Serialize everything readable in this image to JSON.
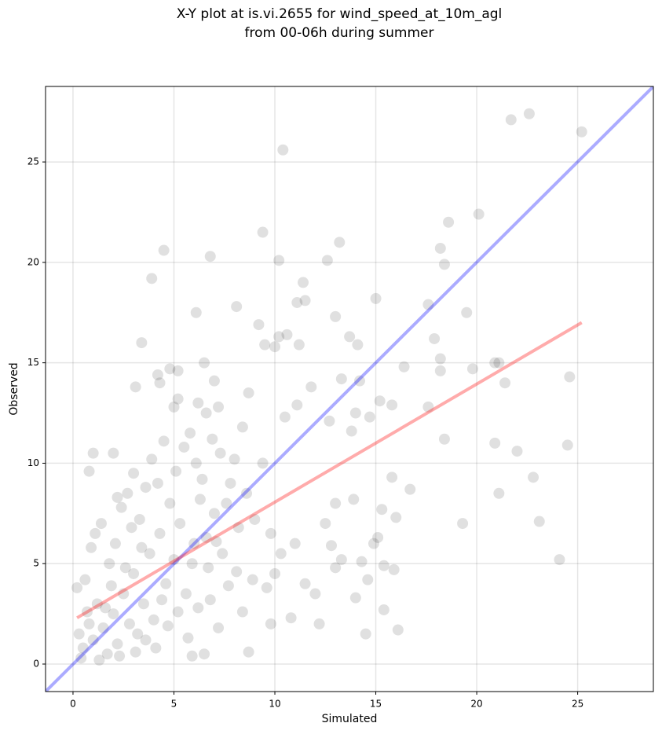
{
  "chart_data": {
    "type": "scatter",
    "title": [
      "X-Y plot at is.vi.2655 for wind_speed_at_10m_agl",
      "from 00-06h during summer"
    ],
    "x_label": "Simulated",
    "y_label": "Observed",
    "xlim": [
      -1.36,
      28.75
    ],
    "ylim": [
      -1.37,
      28.76
    ],
    "xticks": [
      0,
      5,
      10,
      15,
      20,
      25
    ],
    "yticks": [
      0,
      5,
      10,
      15,
      20,
      25
    ],
    "grid": true,
    "points": {
      "color": "#000000",
      "x": [
        10.4,
        21.7,
        22.6,
        25.2,
        9.4,
        13.2,
        18.6,
        20.1,
        4.5,
        6.8,
        10.2,
        12.6,
        18.2,
        18.4,
        3.9,
        11.4,
        11.1,
        11.5,
        8.1,
        15.0,
        17.6,
        19.5,
        6.1,
        13.0,
        9.2,
        10.2,
        10.6,
        13.7,
        17.9,
        3.4,
        9.5,
        10.0,
        11.2,
        14.1,
        20.9,
        21.1,
        19.8,
        21.4,
        24.6,
        18.2,
        18.2,
        16.4,
        14.2,
        13.3,
        7.0,
        4.8,
        5.2,
        3.1,
        4.2,
        4.3,
        5.0,
        5.2,
        6.5,
        6.2,
        6.6,
        7.2,
        8.7,
        10.5,
        11.8,
        11.1,
        15.2,
        15.8,
        17.6,
        14.0,
        14.7,
        12.7,
        13.8,
        18.4,
        22.0,
        24.5,
        20.9,
        21.1,
        22.8,
        16.7,
        15.8,
        19.3,
        23.1,
        24.1,
        15.3,
        16.0,
        15.1,
        14.9,
        15.4,
        15.9,
        14.6,
        15.4,
        16.1,
        14.5,
        12.2,
        10.8,
        9.8,
        8.4,
        8.7,
        6.5,
        5.9,
        13.0,
        13.3,
        12.8,
        14.0,
        13.9,
        13.0,
        14.3,
        12.5,
        11.0,
        11.5,
        12.0,
        10.0,
        9.6,
        8.9,
        10.3,
        0.3,
        0.5,
        0.8,
        1.0,
        1.2,
        1.5,
        1.7,
        2.0,
        2.2,
        2.5,
        2.8,
        3.0,
        3.2,
        3.5,
        3.8,
        4.0,
        4.3,
        4.6,
        5.0,
        5.3,
        5.6,
        6.0,
        6.3,
        6.7,
        7.0,
        7.4,
        7.8,
        8.2,
        8.6,
        9.0,
        9.4,
        9.8,
        0.2,
        0.6,
        0.9,
        1.1,
        1.4,
        1.8,
        2.1,
        2.4,
        2.7,
        3.0,
        3.3,
        3.6,
        3.9,
        4.2,
        4.5,
        4.8,
        5.1,
        5.5,
        5.8,
        6.1,
        6.4,
        6.9,
        7.3,
        7.6,
        8.0,
        8.4,
        0.4,
        1.3,
        2.3,
        3.1,
        3.6,
        4.1,
        4.7,
        5.2,
        5.7,
        6.2,
        6.8,
        7.2,
        7.7,
        8.1,
        1.6,
        2.6,
        1.9,
        0.7,
        2.9,
        4.4,
        3.4,
        5.9,
        6.6,
        7.1,
        1.0,
        2.0,
        0.8,
        2.2
      ],
      "values": [
        25.6,
        27.1,
        27.4,
        26.5,
        21.5,
        21.0,
        22.0,
        22.4,
        20.6,
        20.3,
        20.1,
        20.1,
        20.7,
        19.9,
        19.2,
        19.0,
        18.0,
        18.1,
        17.8,
        18.2,
        17.9,
        17.5,
        17.5,
        17.3,
        16.9,
        16.3,
        16.4,
        16.3,
        16.2,
        16.0,
        15.9,
        15.8,
        15.9,
        15.9,
        15.0,
        15.0,
        14.7,
        14.0,
        14.3,
        15.2,
        14.6,
        14.8,
        14.1,
        14.2,
        14.1,
        14.7,
        14.6,
        13.8,
        14.4,
        14.0,
        12.8,
        13.2,
        15.0,
        13.0,
        12.5,
        12.8,
        13.5,
        12.3,
        13.8,
        12.9,
        13.1,
        12.9,
        12.8,
        12.5,
        12.3,
        12.1,
        11.6,
        11.2,
        10.6,
        10.9,
        11.0,
        8.5,
        9.3,
        8.7,
        9.3,
        7.0,
        7.1,
        5.2,
        7.7,
        7.3,
        6.3,
        6.0,
        4.9,
        4.7,
        4.2,
        2.7,
        1.7,
        1.5,
        2.0,
        2.3,
        2.0,
        2.6,
        0.6,
        0.5,
        0.4,
        8.0,
        5.2,
        5.9,
        3.3,
        8.2,
        4.8,
        5.1,
        7.0,
        6.0,
        4.0,
        3.5,
        4.5,
        3.8,
        4.2,
        5.5,
        1.5,
        0.8,
        2.0,
        1.2,
        3.0,
        1.8,
        0.5,
        2.5,
        1.0,
        3.5,
        2.0,
        4.5,
        1.5,
        3.0,
        5.5,
        2.2,
        6.5,
        4.0,
        5.2,
        7.0,
        3.5,
        6.0,
        8.2,
        4.8,
        7.5,
        5.5,
        9.0,
        6.8,
        8.5,
        7.2,
        10.0,
        6.5,
        3.8,
        4.2,
        5.8,
        6.5,
        7.0,
        5.0,
        6.0,
        7.8,
        8.5,
        9.5,
        7.2,
        8.8,
        10.2,
        9.0,
        11.1,
        8.0,
        9.6,
        10.8,
        11.5,
        10.0,
        9.2,
        11.2,
        10.5,
        8.0,
        10.2,
        11.8,
        0.3,
        0.2,
        0.4,
        0.6,
        1.2,
        0.8,
        1.9,
        2.6,
        1.3,
        2.8,
        3.2,
        1.8,
        3.9,
        4.6,
        2.8,
        4.8,
        3.9,
        2.6,
        6.8,
        3.2,
        5.8,
        5.0,
        6.3,
        6.1,
        10.5,
        10.5,
        9.6,
        8.3
      ]
    },
    "lines": [
      {
        "color": "#0000ff",
        "x": [
          -1.36,
          28.75
        ],
        "values": [
          -1.37,
          28.76
        ]
      },
      {
        "color": "#ff0000",
        "x": [
          0.2,
          25.2
        ],
        "values": [
          2.3,
          17.0
        ]
      }
    ]
  }
}
